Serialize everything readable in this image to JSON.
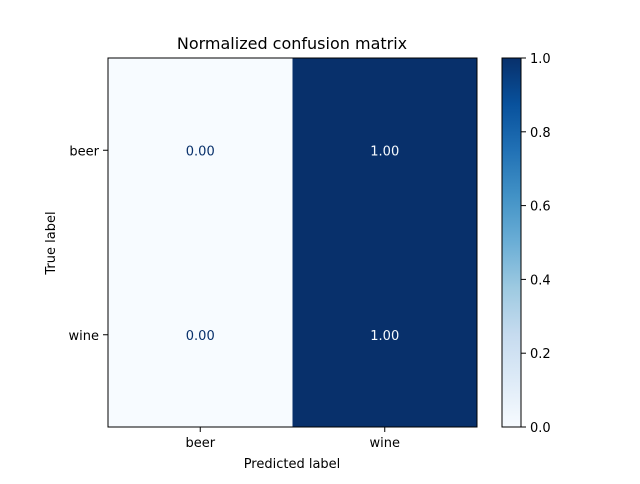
{
  "chart_data": {
    "type": "heatmap",
    "title": "Normalized confusion matrix",
    "xlabel": "Predicted label",
    "ylabel": "True label",
    "x_categories": [
      "beer",
      "wine"
    ],
    "y_categories": [
      "beer",
      "wine"
    ],
    "values": [
      [
        0.0,
        1.0
      ],
      [
        0.0,
        1.0
      ]
    ],
    "value_labels": [
      [
        "0.00",
        "1.00"
      ],
      [
        "0.00",
        "1.00"
      ]
    ],
    "colormap": "Blues",
    "colorbar": {
      "range": [
        0.0,
        1.0
      ],
      "ticks": [
        0.0,
        0.2,
        0.4,
        0.6,
        0.8,
        1.0
      ],
      "tick_labels": [
        "0.0",
        "0.2",
        "0.4",
        "0.6",
        "0.8",
        "1.0"
      ]
    },
    "colors": {
      "low": "#f7fbff",
      "high": "#08306b",
      "text_on_light": "#08306b",
      "text_on_dark": "#f7fbff"
    },
    "grid": false,
    "legend": "colorbar-right"
  }
}
